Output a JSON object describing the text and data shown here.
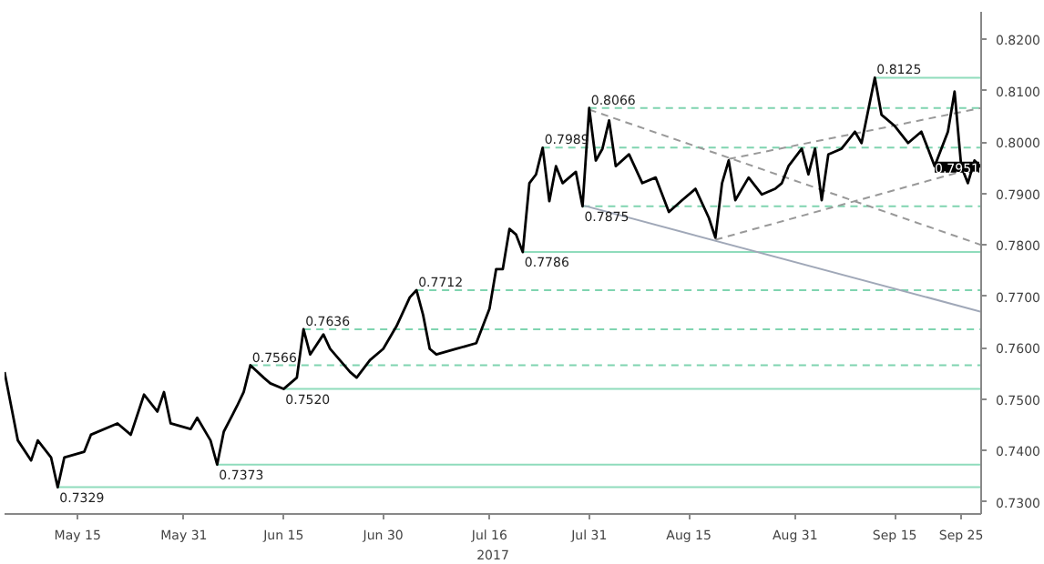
{
  "chart_data": {
    "type": "line",
    "xlabel": "2017",
    "grid": false,
    "marker": "none",
    "xlim": [
      "2017-05-04",
      "2017-09-28"
    ],
    "xticks": [
      {
        "value": "2017-05-15",
        "label": "May 15"
      },
      {
        "value": "2017-05-31",
        "label": "May 31"
      },
      {
        "value": "2017-06-15",
        "label": "Jun 15"
      },
      {
        "value": "2017-06-30",
        "label": "Jun 30"
      },
      {
        "value": "2017-07-16",
        "label": "Jul 16"
      },
      {
        "value": "2017-07-31",
        "label": "Jul 31"
      },
      {
        "value": "2017-08-15",
        "label": "Aug 15"
      },
      {
        "value": "2017-08-31",
        "label": "Aug 31"
      },
      {
        "value": "2017-09-15",
        "label": "Sep 15"
      },
      {
        "value": "2017-09-25",
        "label": "Sep 25"
      }
    ],
    "ylim": [
      0.7277,
      0.8253
    ],
    "yticks": [
      {
        "value": 0.73,
        "label": "0.7300"
      },
      {
        "value": 0.74,
        "label": "0.7400"
      },
      {
        "value": 0.75,
        "label": "0.7500"
      },
      {
        "value": 0.76,
        "label": "0.7600"
      },
      {
        "value": 0.77,
        "label": "0.7700"
      },
      {
        "value": 0.78,
        "label": "0.7800"
      },
      {
        "value": 0.79,
        "label": "0.7900"
      },
      {
        "value": 0.8,
        "label": "0.8000"
      },
      {
        "value": 0.81,
        "label": "0.8100"
      },
      {
        "value": 0.82,
        "label": "0.8200"
      }
    ],
    "series": [
      {
        "type": "line",
        "color": "#000000",
        "line_style": "solid",
        "x": [
          "2017-05-04",
          "2017-05-06",
          "2017-05-08",
          "2017-05-09",
          "2017-05-11",
          "2017-05-12",
          "2017-05-13",
          "2017-05-16",
          "2017-05-17",
          "2017-05-21",
          "2017-05-23",
          "2017-05-25",
          "2017-05-27",
          "2017-05-28",
          "2017-05-29",
          "2017-06-01",
          "2017-06-02",
          "2017-06-04",
          "2017-06-05",
          "2017-06-06",
          "2017-06-08",
          "2017-06-09",
          "2017-06-10",
          "2017-06-12",
          "2017-06-13",
          "2017-06-15",
          "2017-06-17",
          "2017-06-18",
          "2017-06-19",
          "2017-06-21",
          "2017-06-22",
          "2017-06-25",
          "2017-06-26",
          "2017-06-28",
          "2017-06-30",
          "2017-07-02",
          "2017-07-04",
          "2017-07-05",
          "2017-07-06",
          "2017-07-07",
          "2017-07-08",
          "2017-07-11",
          "2017-07-14",
          "2017-07-16",
          "2017-07-17",
          "2017-07-18",
          "2017-07-19",
          "2017-07-20",
          "2017-07-21",
          "2017-07-22",
          "2017-07-23",
          "2017-07-24",
          "2017-07-25",
          "2017-07-26",
          "2017-07-27",
          "2017-07-29",
          "2017-07-30",
          "2017-07-31",
          "2017-08-01",
          "2017-08-02",
          "2017-08-03",
          "2017-08-04",
          "2017-08-06",
          "2017-08-08",
          "2017-08-10",
          "2017-08-12",
          "2017-08-14",
          "2017-08-16",
          "2017-08-18",
          "2017-08-19",
          "2017-08-20",
          "2017-08-21",
          "2017-08-22",
          "2017-08-24",
          "2017-08-26",
          "2017-08-28",
          "2017-08-29",
          "2017-08-30",
          "2017-09-01",
          "2017-09-02",
          "2017-09-03",
          "2017-09-04",
          "2017-09-05",
          "2017-09-07",
          "2017-09-09",
          "2017-09-10",
          "2017-09-12",
          "2017-09-13",
          "2017-09-15",
          "2017-09-17",
          "2017-09-19",
          "2017-09-20",
          "2017-09-21",
          "2017-09-23",
          "2017-09-24",
          "2017-09-25",
          "2017-09-26",
          "2017-09-27",
          "2017-09-28"
        ],
        "values": [
          0.7553,
          0.742,
          0.7381,
          0.742,
          0.7387,
          0.7329,
          0.7387,
          0.7398,
          0.7431,
          0.7453,
          0.7431,
          0.7509,
          0.7476,
          0.7514,
          0.7453,
          0.7442,
          0.7464,
          0.742,
          0.7373,
          0.7437,
          0.7487,
          0.7514,
          0.7566,
          0.7542,
          0.7531,
          0.752,
          0.7542,
          0.7636,
          0.7587,
          0.7626,
          0.7598,
          0.7553,
          0.7542,
          0.7576,
          0.7598,
          0.7642,
          0.7698,
          0.7712,
          0.7664,
          0.7598,
          0.7587,
          0.7598,
          0.7609,
          0.7676,
          0.7753,
          0.7753,
          0.7831,
          0.782,
          0.7786,
          0.792,
          0.7937,
          0.7989,
          0.7885,
          0.7953,
          0.792,
          0.7942,
          0.7875,
          0.8066,
          0.7964,
          0.7987,
          0.8042,
          0.7953,
          0.7976,
          0.792,
          0.7931,
          0.7864,
          0.7887,
          0.7909,
          0.7853,
          0.7814,
          0.792,
          0.7964,
          0.7887,
          0.7931,
          0.7898,
          0.7909,
          0.792,
          0.7953,
          0.7987,
          0.7937,
          0.7987,
          0.7887,
          0.7976,
          0.7987,
          0.802,
          0.7998,
          0.8125,
          0.8053,
          0.8031,
          0.7998,
          0.802,
          0.7987,
          0.7953,
          0.802,
          0.8098,
          0.7953,
          0.792,
          0.7964,
          0.7951
        ]
      },
      {
        "type": "line",
        "color": "#8fdcbc",
        "line_style": "solid",
        "x": [
          "2017-05-12",
          "2017-09-28"
        ],
        "values": [
          0.7329,
          0.7329
        ]
      },
      {
        "type": "line",
        "color": "#8fdcbc",
        "line_style": "solid",
        "x": [
          "2017-06-05",
          "2017-09-28"
        ],
        "values": [
          0.7373,
          0.7373
        ]
      },
      {
        "type": "line",
        "color": "#8fdcbc",
        "line_style": "solid",
        "x": [
          "2017-06-15",
          "2017-09-28"
        ],
        "values": [
          0.752,
          0.752
        ]
      },
      {
        "type": "line",
        "color": "#7fd4b0",
        "line_style": "dashed",
        "x": [
          "2017-06-10",
          "2017-09-28"
        ],
        "values": [
          0.7566,
          0.7566
        ]
      },
      {
        "type": "line",
        "color": "#7fd4b0",
        "line_style": "dashed",
        "x": [
          "2017-06-18",
          "2017-09-28"
        ],
        "values": [
          0.7636,
          0.7636
        ]
      },
      {
        "type": "line",
        "color": "#7fd4b0",
        "line_style": "dashed",
        "x": [
          "2017-07-05",
          "2017-09-28"
        ],
        "values": [
          0.7712,
          0.7712
        ]
      },
      {
        "type": "line",
        "color": "#8fdcbc",
        "line_style": "solid",
        "x": [
          "2017-07-21",
          "2017-09-28"
        ],
        "values": [
          0.7786,
          0.7786
        ]
      },
      {
        "type": "line",
        "color": "#7fd4b0",
        "line_style": "dashed",
        "x": [
          "2017-07-30",
          "2017-09-28"
        ],
        "values": [
          0.7875,
          0.7875
        ]
      },
      {
        "type": "line",
        "color": "#7fd4b0",
        "line_style": "dashed",
        "x": [
          "2017-07-24",
          "2017-09-28"
        ],
        "values": [
          0.7989,
          0.7989
        ]
      },
      {
        "type": "line",
        "color": "#7fd4b0",
        "line_style": "dashed",
        "x": [
          "2017-07-31",
          "2017-09-28"
        ],
        "values": [
          0.8066,
          0.8066
        ]
      },
      {
        "type": "line",
        "color": "#8fdcbc",
        "line_style": "solid",
        "x": [
          "2017-09-12",
          "2017-09-28"
        ],
        "values": [
          0.8125,
          0.8125
        ]
      },
      {
        "type": "line",
        "color": "#999999",
        "line_style": "dashed",
        "x": [
          "2017-07-31",
          "2017-09-28"
        ],
        "values": [
          0.8063,
          0.78
        ]
      },
      {
        "type": "line",
        "color": "#999999",
        "line_style": "dashed",
        "x": [
          "2017-08-19",
          "2017-09-28"
        ],
        "values": [
          0.781,
          0.7953
        ]
      },
      {
        "type": "line",
        "color": "#999999",
        "line_style": "dashed",
        "x": [
          "2017-08-21",
          "2017-09-28"
        ],
        "values": [
          0.7967,
          0.8066
        ]
      },
      {
        "type": "line",
        "color": "#a0a8b8",
        "line_style": "solid",
        "x": [
          "2017-07-30",
          "2017-09-28"
        ],
        "values": [
          0.7877,
          0.767
        ]
      }
    ],
    "annotations": [
      {
        "text": "0.7329",
        "x": "2017-05-12",
        "y": 0.7329
      },
      {
        "text": "0.7373",
        "x": "2017-06-05",
        "y": 0.7373
      },
      {
        "text": "0.7520",
        "x": "2017-06-15",
        "y": 0.752
      },
      {
        "text": "0.7566",
        "x": "2017-06-10",
        "y": 0.7566
      },
      {
        "text": "0.7636",
        "x": "2017-06-18",
        "y": 0.7636
      },
      {
        "text": "0.7712",
        "x": "2017-07-05",
        "y": 0.7712
      },
      {
        "text": "0.7786",
        "x": "2017-07-21",
        "y": 0.7786
      },
      {
        "text": "0.7875",
        "x": "2017-07-30",
        "y": 0.7875
      },
      {
        "text": "0.7989",
        "x": "2017-07-24",
        "y": 0.7989
      },
      {
        "text": "0.8066",
        "x": "2017-07-31",
        "y": 0.8066
      },
      {
        "text": "0.8125",
        "x": "2017-09-12",
        "y": 0.8125
      },
      {
        "text": "0.7951",
        "x": "2017-09-28",
        "y": 0.7951
      }
    ]
  }
}
